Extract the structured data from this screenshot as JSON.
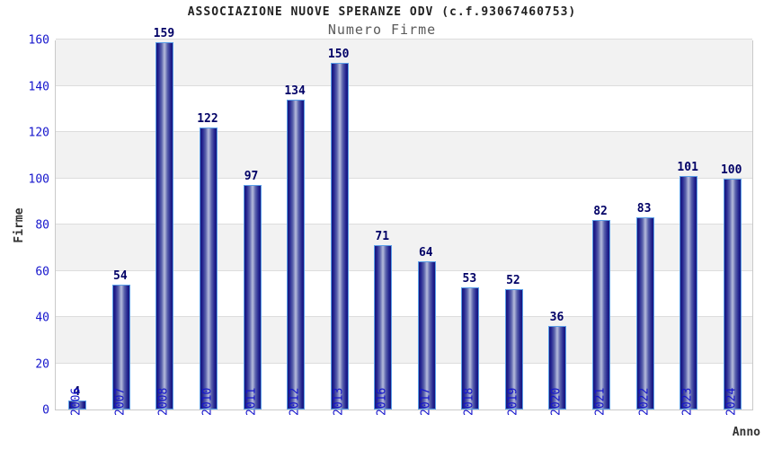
{
  "header": {
    "title": "ASSOCIAZIONE NUOVE SPERANZE ODV (c.f.93067460753)",
    "subtitle": "Numero Firme"
  },
  "chart_data": {
    "type": "bar",
    "title": "ASSOCIAZIONE NUOVE SPERANZE ODV (c.f.93067460753)",
    "subtitle": "Numero Firme",
    "xlabel": "Anno",
    "ylabel": "Firme",
    "categories": [
      "2006",
      "2007",
      "2008",
      "2010",
      "2011",
      "2012",
      "2013",
      "2016",
      "2017",
      "2018",
      "2019",
      "2020",
      "2021",
      "2022",
      "2023",
      "2024"
    ],
    "values": [
      4,
      54,
      159,
      122,
      97,
      134,
      150,
      71,
      64,
      53,
      52,
      36,
      82,
      83,
      101,
      100
    ],
    "ylim": [
      0,
      160
    ],
    "ytick_step": 20,
    "yticks": [
      0,
      20,
      40,
      60,
      80,
      100,
      120,
      140,
      160
    ],
    "grid": true,
    "legend": "none",
    "colors": {
      "bar_edge": "#5b9fe8",
      "bar_dark": "#15157c",
      "bar_light": "#b6bcdc",
      "tick_label": "#1515cc",
      "value_label": "#000066",
      "band_gray": "#f2f2f2",
      "gridline": "#dddddd",
      "axis_title": "#333333",
      "title": "#222222",
      "subtitle": "#5a5a5a"
    }
  }
}
